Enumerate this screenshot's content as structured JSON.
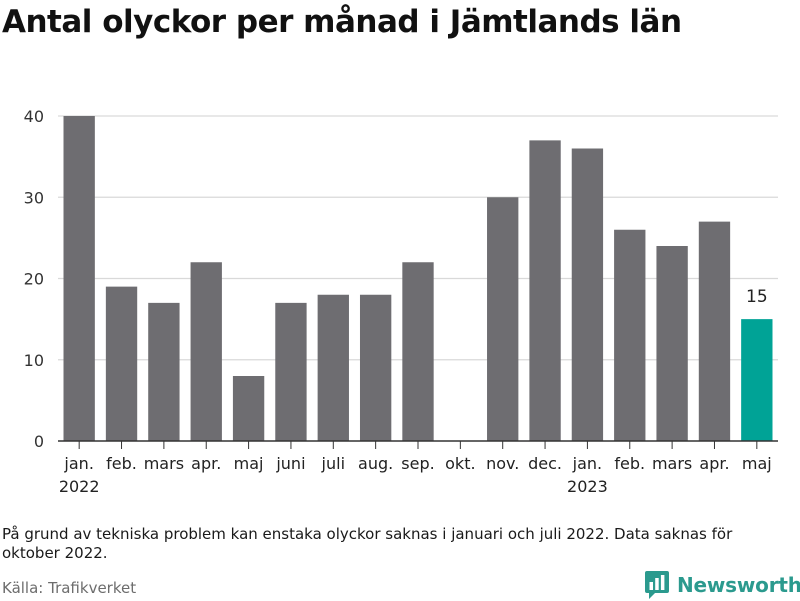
{
  "title": "Antal olyckor per månad i Jämtlands län",
  "note": "På grund av tekniska problem kan enstaka olyckor saknas i januari och juli 2022. Data saknas för oktober 2022.",
  "source": "Källa: Trafikverket",
  "brand": {
    "name": "Newsworthy",
    "icon": "newsworthy-logo-icon",
    "color": "#2b9a8e"
  },
  "chart_data": {
    "type": "bar",
    "title": "Antal olyckor per månad i Jämtlands län",
    "xlabel": "",
    "ylabel": "",
    "ylim": [
      0,
      40
    ],
    "yticks": [
      0,
      10,
      20,
      30,
      40
    ],
    "grid": true,
    "legend": "none",
    "categories": [
      "jan.",
      "feb.",
      "mars",
      "apr.",
      "maj",
      "juni",
      "juli",
      "aug.",
      "sep.",
      "okt.",
      "nov.",
      "dec.",
      "jan.",
      "feb.",
      "mars",
      "apr.",
      "maj"
    ],
    "year_labels": [
      "2022",
      "",
      "",
      "",
      "",
      "",
      "",
      "",
      "",
      "",
      "",
      "",
      "2023",
      "",
      "",
      "",
      ""
    ],
    "values": [
      40,
      19,
      17,
      22,
      8,
      17,
      18,
      18,
      22,
      null,
      30,
      37,
      36,
      26,
      24,
      27,
      15
    ],
    "colors": {
      "default": "#6e6d71",
      "highlight": "#00a396",
      "grid": "#d9d9d9",
      "axis": "#333333"
    },
    "highlight_index": 16,
    "annotations": [
      {
        "index": 16,
        "text": "15"
      }
    ]
  }
}
